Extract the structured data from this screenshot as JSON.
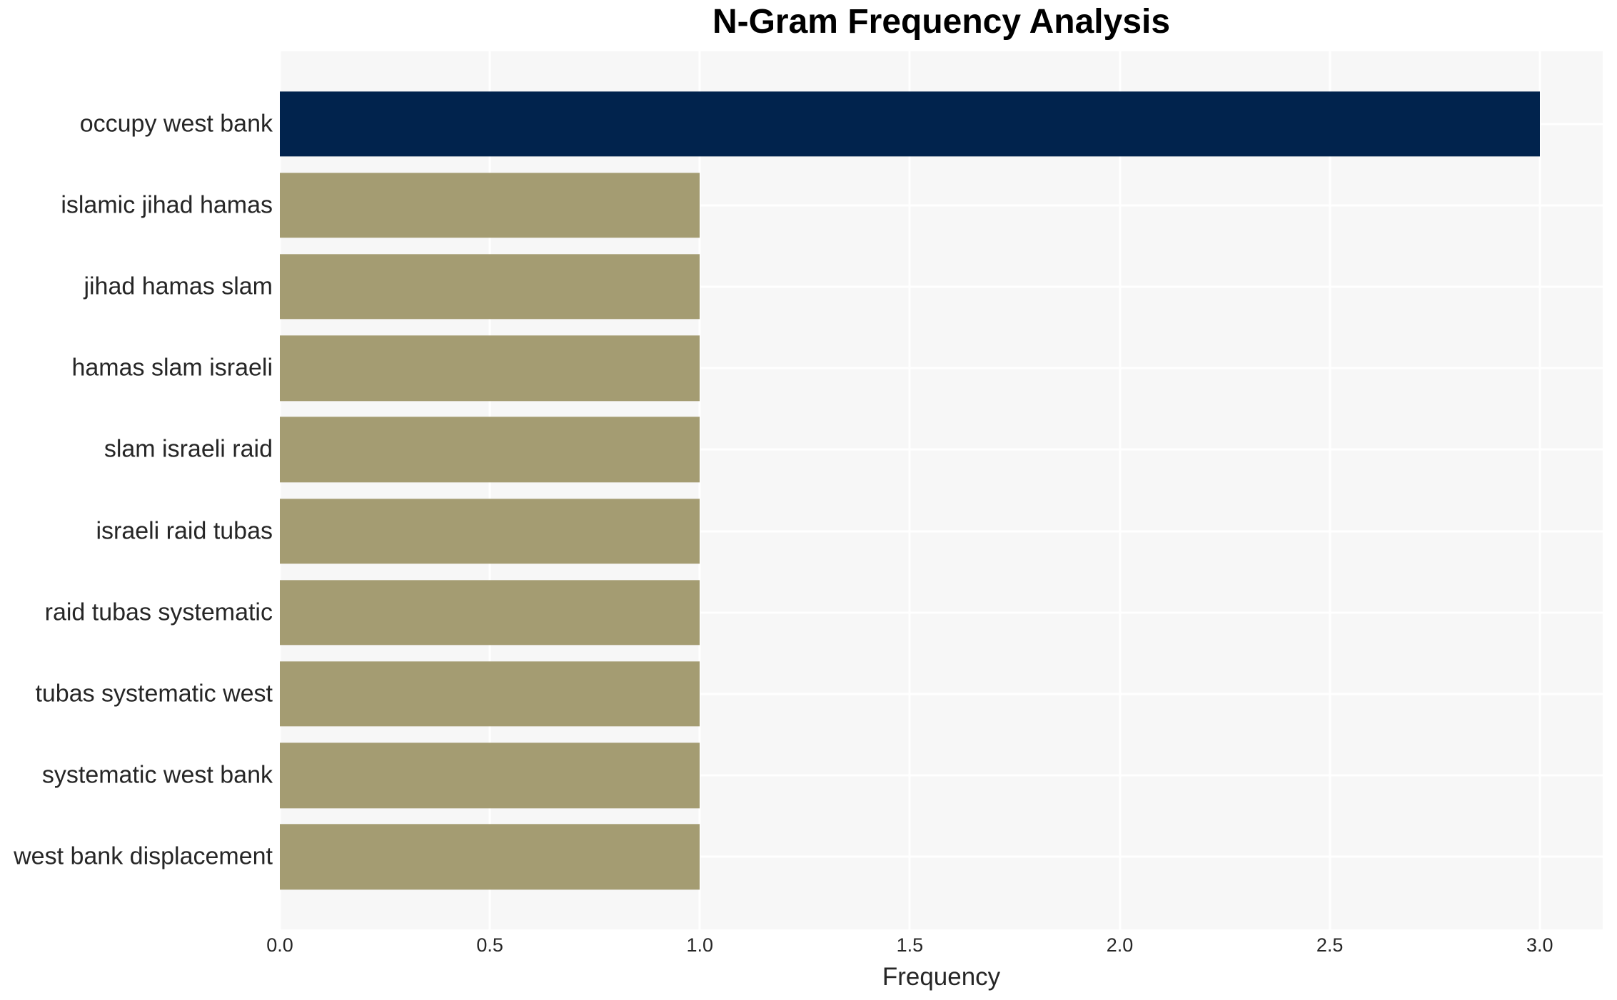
{
  "chart_data": {
    "type": "bar",
    "orientation": "horizontal",
    "title": "N-Gram Frequency Analysis",
    "xlabel": "Frequency",
    "ylabel": "",
    "categories": [
      "occupy west bank",
      "islamic jihad hamas",
      "jihad hamas slam",
      "hamas slam israeli",
      "slam israeli raid",
      "israeli raid tubas",
      "raid tubas systematic",
      "tubas systematic west",
      "systematic west bank",
      "west bank displacement"
    ],
    "values": [
      3,
      1,
      1,
      1,
      1,
      1,
      1,
      1,
      1,
      1
    ],
    "bar_colors": [
      "#01234d",
      "#a49c72",
      "#a49c72",
      "#a49c72",
      "#a49c72",
      "#a49c72",
      "#a49c72",
      "#a49c72",
      "#a49c72",
      "#a49c72"
    ],
    "xticks": [
      0.0,
      0.5,
      1.0,
      1.5,
      2.0,
      2.5,
      3.0
    ],
    "xtick_labels": [
      "0.0",
      "0.5",
      "1.0",
      "1.5",
      "2.0",
      "2.5",
      "3.0"
    ],
    "xlim": [
      0,
      3.15
    ],
    "grid": true,
    "legend": false,
    "colors": {
      "highlight_bar": "#01234d",
      "bar": "#a49c72",
      "plot_background": "#f7f7f7",
      "gridline": "#ffffff",
      "label_text": "#262626",
      "title_text": "#000000"
    }
  }
}
